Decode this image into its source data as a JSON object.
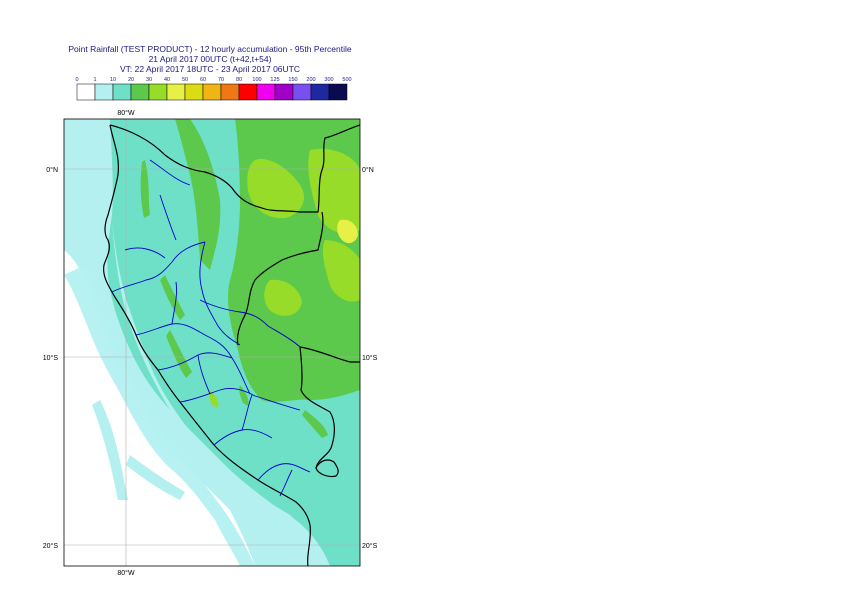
{
  "title": {
    "line1": "Point Rainfall (TEST PRODUCT) - 12 hourly accumulation - 95th Percentile",
    "line2": "21 April 2017 00UTC (t+42,t+54)",
    "line3": "VT: 22 April 2017 18UTC - 23 April 2017 06UTC"
  },
  "legend": {
    "ticks": [
      "0",
      "1",
      "10",
      "20",
      "30",
      "40",
      "50",
      "60",
      "70",
      "80",
      "100",
      "125",
      "150",
      "200",
      "300",
      "500"
    ],
    "colors": [
      "#ffffff",
      "#b4f0f0",
      "#6ee0c8",
      "#5cc84c",
      "#96dc28",
      "#e6f046",
      "#dcdc14",
      "#f0b414",
      "#f07814",
      "#ff0000",
      "#f000f0",
      "#a000c8",
      "#7850f0",
      "#1e28a0",
      "#0a0a50"
    ]
  },
  "map": {
    "lat_labels": {
      "north0": "0°N",
      "s10": "10°S",
      "s20": "20°S"
    },
    "lon_labels": {
      "top": "80°W",
      "bottom": "80°W"
    },
    "colors": {
      "sea": "#b4f0f0",
      "land_light": "#6ee0c8",
      "land_green": "#5cc84c",
      "land_lime": "#96dc28",
      "land_yellow": "#e6f046",
      "sea_white": "#ffffff",
      "border": "#000000",
      "region_border": "#0000c8"
    }
  }
}
